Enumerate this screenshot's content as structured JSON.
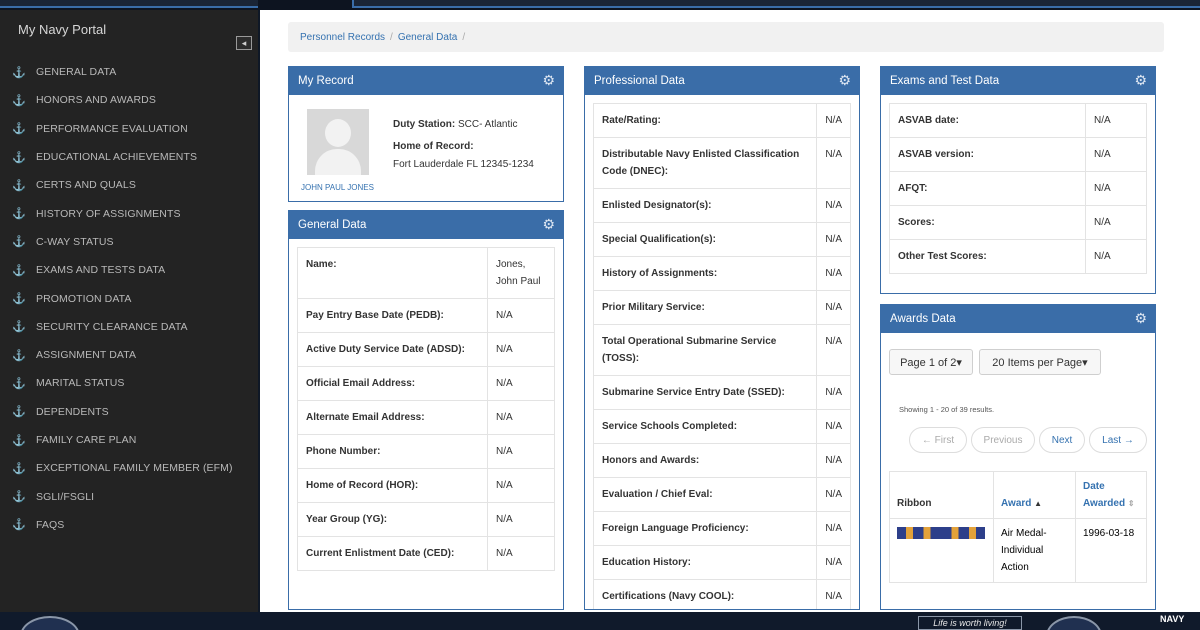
{
  "app": {
    "title": "My Navy Portal"
  },
  "sidebar": {
    "items": [
      "GENERAL DATA",
      "HONORS AND AWARDS",
      "PERFORMANCE EVALUATION",
      "EDUCATIONAL ACHIEVEMENTS",
      "CERTS AND QUALS",
      "HISTORY OF ASSIGNMENTS",
      "C-WAY STATUS",
      "EXAMS AND TESTS DATA",
      "PROMOTION DATA",
      "SECURITY CLEARANCE DATA",
      "ASSIGNMENT DATA",
      "MARITAL STATUS",
      "DEPENDENTS",
      "FAMILY CARE PLAN",
      "EXCEPTIONAL FAMILY MEMBER (EFM)",
      "SGLI/FSGLI",
      "FAQS"
    ],
    "collapse_glyph": "◂"
  },
  "breadcrumb": {
    "items": [
      "Personnel Records",
      "General Data"
    ],
    "separator": "/"
  },
  "my_record": {
    "title": "My Record",
    "name": "JOHN PAUL JONES",
    "duty_station_label": "Duty Station:",
    "duty_station_value": "SCC- Atlantic",
    "home_label": "Home of Record:",
    "home_value": "Fort Lauderdale FL 12345-1234"
  },
  "general_data": {
    "title": "General Data",
    "rows": [
      {
        "label": "Name:",
        "value": "Jones, John Paul"
      },
      {
        "label": "Pay Entry Base Date (PEDB):",
        "value": "N/A"
      },
      {
        "label": "Active Duty Service Date (ADSD):",
        "value": "N/A"
      },
      {
        "label": "Official Email Address:",
        "value": "N/A"
      },
      {
        "label": "Alternate Email Address:",
        "value": "N/A"
      },
      {
        "label": "Phone Number:",
        "value": "N/A"
      },
      {
        "label": "Home of Record (HOR):",
        "value": "N/A"
      },
      {
        "label": "Year Group (YG):",
        "value": "N/A"
      },
      {
        "label": "Current Enlistment Date (CED):",
        "value": "N/A"
      }
    ]
  },
  "professional_data": {
    "title": "Professional Data",
    "rows": [
      {
        "label": "Rate/Rating:",
        "value": "N/A"
      },
      {
        "label": "Distributable Navy Enlisted Classification Code (DNEC):",
        "value": "N/A"
      },
      {
        "label": "Enlisted Designator(s):",
        "value": "N/A"
      },
      {
        "label": "Special Qualification(s):",
        "value": "N/A"
      },
      {
        "label": "History of Assignments:",
        "value": "N/A"
      },
      {
        "label": "Prior Military Service:",
        "value": "N/A"
      },
      {
        "label": "Total Operational Submarine Service (TOSS):",
        "value": "N/A"
      },
      {
        "label": "Submarine Service Entry Date (SSED):",
        "value": "N/A"
      },
      {
        "label": "Service Schools Completed:",
        "value": "N/A"
      },
      {
        "label": "Honors and Awards:",
        "value": "N/A"
      },
      {
        "label": "Evaluation / Chief Eval:",
        "value": "N/A"
      },
      {
        "label": "Foreign Language Proficiency:",
        "value": "N/A"
      },
      {
        "label": "Education History:",
        "value": "N/A"
      },
      {
        "label": "Certifications (Navy COOL):",
        "value": "N/A"
      }
    ]
  },
  "exams": {
    "title": "Exams and Test Data",
    "rows": [
      {
        "label": "ASVAB date:",
        "value": "N/A"
      },
      {
        "label": "ASVAB version:",
        "value": "N/A"
      },
      {
        "label": "AFQT:",
        "value": "N/A"
      },
      {
        "label": "Scores:",
        "value": "N/A"
      },
      {
        "label": "Other Test Scores:",
        "value": "N/A"
      }
    ]
  },
  "awards": {
    "title": "Awards Data",
    "page_select": "Page 1 of 2▾",
    "per_page_select": "20 Items per Page▾",
    "showing": "Showing 1 - 20 of 39 results.",
    "pager": {
      "first": "← First",
      "previous": "Previous",
      "next": "Next",
      "last": "Last →"
    },
    "columns": {
      "ribbon": "Ribbon",
      "award": "Award",
      "date": "Date Awarded"
    },
    "sort_glyphs": {
      "award": "▲",
      "date": "⇕"
    },
    "rows": [
      {
        "award": "Air Medal- Individual Action",
        "date": "1996-03-18"
      }
    ]
  },
  "footer": {
    "slogan": "Life is worth living!",
    "brand": "NAVY"
  },
  "icons": {
    "nav": "anchor-icon",
    "gear": "gear-icon"
  },
  "colors": {
    "accent": "#3a6da8",
    "link": "#3572b0",
    "sidebar": "#232323"
  }
}
